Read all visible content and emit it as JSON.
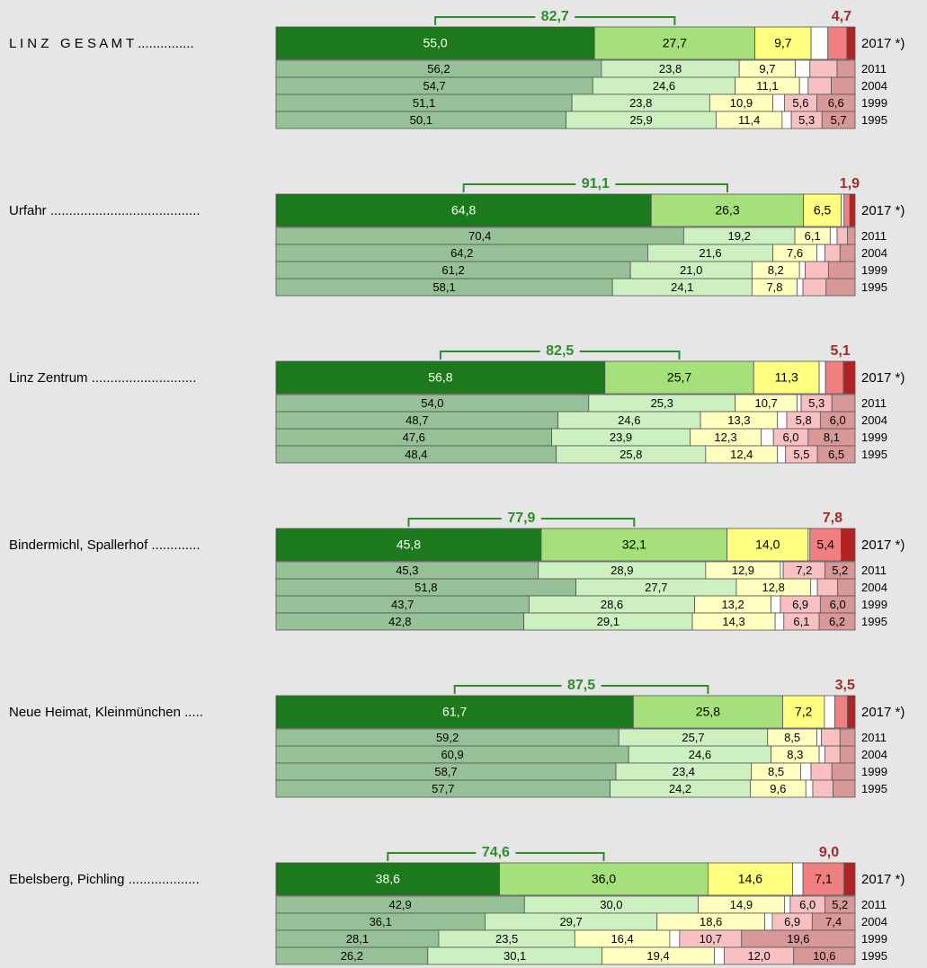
{
  "chart_data": {
    "type": "bar",
    "xlim": [
      0,
      100
    ],
    "colors": [
      "#1c7a1c",
      "#a6e07a",
      "#ffff80",
      "#ffffff",
      "#f08080",
      "#b22222"
    ],
    "colors_past": [
      "#96c196",
      "#cdf0c0",
      "#ffffc0",
      "#ffffff",
      "#f8c0c0",
      "#d89898"
    ],
    "groups": [
      {
        "label": "L I N Z   G E S A M T ...............",
        "good_total": {
          "value": 82.7,
          "label": "82,7"
        },
        "bad_total": {
          "value": 4.7,
          "label": "4,7"
        },
        "rows": [
          {
            "year": "2017 *)",
            "values": [
              55.0,
              27.7,
              9.7,
              2.9,
              3.3,
              1.4
            ],
            "value_labels": [
              "55,0",
              "27,7",
              "9,7",
              null,
              null,
              null
            ]
          },
          {
            "year": "2011",
            "values": [
              56.2,
              23.8,
              9.7,
              2.5,
              4.7,
              3.1
            ],
            "value_labels": [
              "56,2",
              "23,8",
              "9,7",
              null,
              null,
              null
            ]
          },
          {
            "year": "2004",
            "values": [
              54.7,
              24.6,
              11.1,
              1.5,
              4.0,
              4.1
            ],
            "value_labels": [
              "54,7",
              "24,6",
              "11,1",
              null,
              null,
              null
            ]
          },
          {
            "year": "1999",
            "values": [
              51.1,
              23.8,
              10.9,
              2.0,
              5.6,
              6.6
            ],
            "value_labels": [
              "51,1",
              "23,8",
              "10,9",
              null,
              "5,6",
              "6,6"
            ]
          },
          {
            "year": "1995",
            "values": [
              50.1,
              25.9,
              11.4,
              1.6,
              5.3,
              5.7
            ],
            "value_labels": [
              "50,1",
              "25,9",
              "11,4",
              null,
              "5,3",
              "5,7"
            ]
          }
        ]
      },
      {
        "label": "Urfahr ........................................",
        "good_total": {
          "value": 91.1,
          "label": "91,1"
        },
        "bad_total": {
          "value": 1.9,
          "label": "1,9"
        },
        "rows": [
          {
            "year": "2017 *)",
            "values": [
              64.8,
              26.3,
              6.5,
              0.5,
              1.0,
              0.9
            ],
            "value_labels": [
              "64,8",
              "26,3",
              "6,5",
              null,
              null,
              null
            ]
          },
          {
            "year": "2011",
            "values": [
              70.4,
              19.2,
              6.1,
              1.2,
              1.8,
              1.3
            ],
            "value_labels": [
              "70,4",
              "19,2",
              "6,1",
              null,
              null,
              null
            ]
          },
          {
            "year": "2004",
            "values": [
              64.2,
              21.6,
              7.6,
              1.4,
              2.6,
              2.6
            ],
            "value_labels": [
              "64,2",
              "21,6",
              "7,6",
              null,
              null,
              null
            ]
          },
          {
            "year": "1999",
            "values": [
              61.2,
              21.0,
              8.2,
              1.0,
              4.0,
              4.6
            ],
            "value_labels": [
              "61,2",
              "21,0",
              "8,2",
              null,
              null,
              null
            ]
          },
          {
            "year": "1995",
            "values": [
              58.1,
              24.1,
              7.8,
              1.0,
              4.0,
              5.0
            ],
            "value_labels": [
              "58,1",
              "24,1",
              "7,8",
              null,
              null,
              null
            ]
          }
        ]
      },
      {
        "label": "Linz Zentrum ............................",
        "good_total": {
          "value": 82.5,
          "label": "82,5"
        },
        "bad_total": {
          "value": 5.1,
          "label": "5,1"
        },
        "rows": [
          {
            "year": "2017 *)",
            "values": [
              56.8,
              25.7,
              11.3,
              1.1,
              3.1,
              2.0
            ],
            "value_labels": [
              "56,8",
              "25,7",
              "11,3",
              null,
              null,
              null
            ]
          },
          {
            "year": "2011",
            "values": [
              54.0,
              25.3,
              10.7,
              0.7,
              5.3,
              4.0
            ],
            "value_labels": [
              "54,0",
              "25,3",
              "10,7",
              null,
              "5,3",
              null
            ]
          },
          {
            "year": "2004",
            "values": [
              48.7,
              24.6,
              13.3,
              1.6,
              5.8,
              6.0
            ],
            "value_labels": [
              "48,7",
              "24,6",
              "13,3",
              null,
              "5,8",
              "6,0"
            ]
          },
          {
            "year": "1999",
            "values": [
              47.6,
              23.9,
              12.3,
              2.1,
              6.0,
              8.1
            ],
            "value_labels": [
              "47,6",
              "23,9",
              "12,3",
              null,
              "6,0",
              "8,1"
            ]
          },
          {
            "year": "1995",
            "values": [
              48.4,
              25.8,
              12.4,
              1.4,
              5.5,
              6.5
            ],
            "value_labels": [
              "48,4",
              "25,8",
              "12,4",
              null,
              "5,5",
              "6,5"
            ]
          }
        ]
      },
      {
        "label": "Bindermichl, Spallerhof .............",
        "good_total": {
          "value": 77.9,
          "label": "77,9"
        },
        "bad_total": {
          "value": 7.8,
          "label": "7,8"
        },
        "rows": [
          {
            "year": "2017 *)",
            "values": [
              45.8,
              32.1,
              14.0,
              0.3,
              5.4,
              2.4
            ],
            "value_labels": [
              "45,8",
              "32,1",
              "14,0",
              null,
              "5,4",
              null
            ]
          },
          {
            "year": "2011",
            "values": [
              45.3,
              28.9,
              12.9,
              0.5,
              7.2,
              5.2
            ],
            "value_labels": [
              "45,3",
              "28,9",
              "12,9",
              null,
              "7,2",
              "5,2"
            ]
          },
          {
            "year": "2004",
            "values": [
              51.8,
              27.7,
              12.8,
              1.2,
              3.5,
              3.0
            ],
            "value_labels": [
              "51,8",
              "27,7",
              "12,8",
              null,
              null,
              null
            ]
          },
          {
            "year": "1999",
            "values": [
              43.7,
              28.6,
              13.2,
              1.6,
              6.9,
              6.0
            ],
            "value_labels": [
              "43,7",
              "28,6",
              "13,2",
              null,
              "6,9",
              "6,0"
            ]
          },
          {
            "year": "1995",
            "values": [
              42.8,
              29.1,
              14.3,
              1.5,
              6.1,
              6.2
            ],
            "value_labels": [
              "42,8",
              "29,1",
              "14,3",
              null,
              "6,1",
              "6,2"
            ]
          }
        ]
      },
      {
        "label": "Neue Heimat, Kleinmünchen .....",
        "good_total": {
          "value": 87.5,
          "label": "87,5"
        },
        "bad_total": {
          "value": 3.5,
          "label": "3,5"
        },
        "rows": [
          {
            "year": "2017 *)",
            "values": [
              61.7,
              25.8,
              7.2,
              1.8,
              2.2,
              1.3
            ],
            "value_labels": [
              "61,7",
              "25,8",
              "7,2",
              null,
              null,
              null
            ]
          },
          {
            "year": "2011",
            "values": [
              59.2,
              25.7,
              8.5,
              0.8,
              3.2,
              2.6
            ],
            "value_labels": [
              "59,2",
              "25,7",
              "8,5",
              null,
              null,
              null
            ]
          },
          {
            "year": "2004",
            "values": [
              60.9,
              24.6,
              8.3,
              1.0,
              2.6,
              2.6
            ],
            "value_labels": [
              "60,9",
              "24,6",
              "8,3",
              null,
              null,
              null
            ]
          },
          {
            "year": "1999",
            "values": [
              58.7,
              23.4,
              8.5,
              1.8,
              3.6,
              4.0
            ],
            "value_labels": [
              "58,7",
              "23,4",
              "8,5",
              null,
              null,
              null
            ]
          },
          {
            "year": "1995",
            "values": [
              57.7,
              24.2,
              9.6,
              1.2,
              3.5,
              3.8
            ],
            "value_labels": [
              "57,7",
              "24,2",
              "9,6",
              null,
              null,
              null
            ]
          }
        ]
      },
      {
        "label": "Ebelsberg, Pichling ...................",
        "good_total": {
          "value": 74.6,
          "label": "74,6"
        },
        "bad_total": {
          "value": 9.0,
          "label": "9,0"
        },
        "rows": [
          {
            "year": "2017 *)",
            "values": [
              38.6,
              36.0,
              14.6,
              1.8,
              7.1,
              1.9
            ],
            "value_labels": [
              "38,6",
              "36,0",
              "14,6",
              null,
              "7,1",
              null
            ]
          },
          {
            "year": "2011",
            "values": [
              42.9,
              30.0,
              14.9,
              1.0,
              6.0,
              5.2
            ],
            "value_labels": [
              "42,9",
              "30,0",
              "14,9",
              null,
              "6,0",
              "5,2"
            ]
          },
          {
            "year": "2004",
            "values": [
              36.1,
              29.7,
              18.6,
              1.3,
              6.9,
              7.4
            ],
            "value_labels": [
              "36,1",
              "29,7",
              "18,6",
              null,
              "6,9",
              "7,4"
            ]
          },
          {
            "year": "1999",
            "values": [
              28.1,
              23.5,
              16.4,
              1.7,
              10.7,
              19.6
            ],
            "value_labels": [
              "28,1",
              "23,5",
              "16,4",
              null,
              "10,7",
              "19,6"
            ]
          },
          {
            "year": "1995",
            "values": [
              26.2,
              30.1,
              19.4,
              1.7,
              12.0,
              10.6
            ],
            "value_labels": [
              "26,2",
              "30,1",
              "19,4",
              null,
              "12,0",
              "10,6"
            ]
          }
        ]
      }
    ]
  }
}
